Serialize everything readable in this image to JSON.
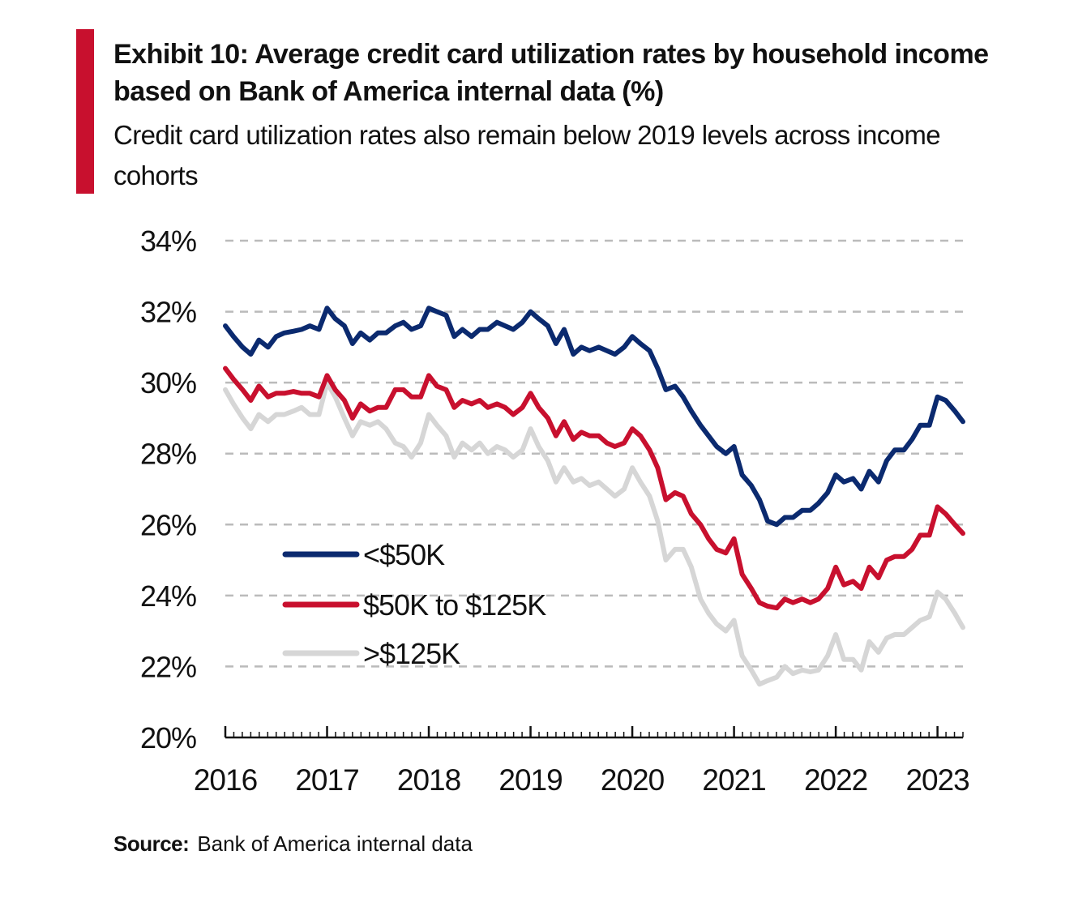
{
  "header": {
    "title": "Exhibit 10: Average credit card utilization rates by household income based on Bank of America internal data (%)",
    "subtitle": "Credit card utilization rates also remain below 2019 levels across income cohorts"
  },
  "source": {
    "label": "Source:",
    "text": "Bank of America internal data"
  },
  "colors": {
    "accent": "#c8102e",
    "low_income": "#0b2a6f",
    "mid_income": "#c8102e",
    "high_income": "#d6d6d6",
    "grid": "#bbbbbb"
  },
  "chart_data": {
    "type": "line",
    "title": "",
    "xlabel": "",
    "ylabel": "",
    "xlim": [
      2016.0,
      2023.25
    ],
    "ylim": [
      20,
      34
    ],
    "y_ticks": [
      "20%",
      "22%",
      "24%",
      "26%",
      "28%",
      "30%",
      "32%",
      "34%"
    ],
    "x_ticks": [
      "2016",
      "2017",
      "2018",
      "2019",
      "2020",
      "2021",
      "2022",
      "2023"
    ],
    "grid": "horizontal dashed",
    "legend_position": "lower-left",
    "series": [
      {
        "name": "<$50K",
        "color": "#0b2a6f",
        "points": [
          [
            2016.0,
            31.6
          ],
          [
            2016.08,
            31.3
          ],
          [
            2016.17,
            31.0
          ],
          [
            2016.25,
            30.8
          ],
          [
            2016.33,
            31.2
          ],
          [
            2016.42,
            31.0
          ],
          [
            2016.5,
            31.3
          ],
          [
            2016.58,
            31.4
          ],
          [
            2016.67,
            31.45
          ],
          [
            2016.75,
            31.5
          ],
          [
            2016.83,
            31.6
          ],
          [
            2016.92,
            31.5
          ],
          [
            2017.0,
            32.1
          ],
          [
            2017.08,
            31.8
          ],
          [
            2017.17,
            31.6
          ],
          [
            2017.25,
            31.1
          ],
          [
            2017.33,
            31.4
          ],
          [
            2017.42,
            31.2
          ],
          [
            2017.5,
            31.4
          ],
          [
            2017.58,
            31.4
          ],
          [
            2017.67,
            31.6
          ],
          [
            2017.75,
            31.7
          ],
          [
            2017.83,
            31.5
          ],
          [
            2017.92,
            31.6
          ],
          [
            2018.0,
            32.1
          ],
          [
            2018.08,
            32.0
          ],
          [
            2018.17,
            31.9
          ],
          [
            2018.25,
            31.3
          ],
          [
            2018.33,
            31.5
          ],
          [
            2018.42,
            31.3
          ],
          [
            2018.5,
            31.5
          ],
          [
            2018.58,
            31.5
          ],
          [
            2018.67,
            31.7
          ],
          [
            2018.75,
            31.6
          ],
          [
            2018.83,
            31.5
          ],
          [
            2018.92,
            31.7
          ],
          [
            2019.0,
            32.0
          ],
          [
            2019.08,
            31.8
          ],
          [
            2019.17,
            31.6
          ],
          [
            2019.25,
            31.1
          ],
          [
            2019.33,
            31.5
          ],
          [
            2019.42,
            30.8
          ],
          [
            2019.5,
            31.0
          ],
          [
            2019.58,
            30.9
          ],
          [
            2019.67,
            31.0
          ],
          [
            2019.75,
            30.9
          ],
          [
            2019.83,
            30.8
          ],
          [
            2019.92,
            31.0
          ],
          [
            2020.0,
            31.3
          ],
          [
            2020.08,
            31.1
          ],
          [
            2020.17,
            30.9
          ],
          [
            2020.25,
            30.4
          ],
          [
            2020.33,
            29.8
          ],
          [
            2020.42,
            29.9
          ],
          [
            2020.5,
            29.6
          ],
          [
            2020.58,
            29.2
          ],
          [
            2020.67,
            28.8
          ],
          [
            2020.75,
            28.5
          ],
          [
            2020.83,
            28.2
          ],
          [
            2020.92,
            28.0
          ],
          [
            2021.0,
            28.2
          ],
          [
            2021.08,
            27.4
          ],
          [
            2021.17,
            27.1
          ],
          [
            2021.25,
            26.7
          ],
          [
            2021.33,
            26.1
          ],
          [
            2021.42,
            26.0
          ],
          [
            2021.5,
            26.2
          ],
          [
            2021.58,
            26.2
          ],
          [
            2021.67,
            26.4
          ],
          [
            2021.75,
            26.4
          ],
          [
            2021.83,
            26.6
          ],
          [
            2021.92,
            26.9
          ],
          [
            2022.0,
            27.4
          ],
          [
            2022.08,
            27.2
          ],
          [
            2022.17,
            27.3
          ],
          [
            2022.25,
            27.0
          ],
          [
            2022.33,
            27.5
          ],
          [
            2022.42,
            27.2
          ],
          [
            2022.5,
            27.8
          ],
          [
            2022.58,
            28.1
          ],
          [
            2022.67,
            28.1
          ],
          [
            2022.75,
            28.4
          ],
          [
            2022.83,
            28.8
          ],
          [
            2022.92,
            28.8
          ],
          [
            2023.0,
            29.6
          ],
          [
            2023.08,
            29.5
          ],
          [
            2023.17,
            29.2
          ],
          [
            2023.25,
            28.9
          ]
        ]
      },
      {
        "name": "$50K to $125K",
        "color": "#c8102e",
        "points": [
          [
            2016.0,
            30.4
          ],
          [
            2016.08,
            30.1
          ],
          [
            2016.17,
            29.8
          ],
          [
            2016.25,
            29.5
          ],
          [
            2016.33,
            29.9
          ],
          [
            2016.42,
            29.6
          ],
          [
            2016.5,
            29.7
          ],
          [
            2016.58,
            29.7
          ],
          [
            2016.67,
            29.75
          ],
          [
            2016.75,
            29.7
          ],
          [
            2016.83,
            29.7
          ],
          [
            2016.92,
            29.6
          ],
          [
            2017.0,
            30.2
          ],
          [
            2017.08,
            29.8
          ],
          [
            2017.17,
            29.5
          ],
          [
            2017.25,
            29.0
          ],
          [
            2017.33,
            29.4
          ],
          [
            2017.42,
            29.2
          ],
          [
            2017.5,
            29.3
          ],
          [
            2017.58,
            29.3
          ],
          [
            2017.67,
            29.8
          ],
          [
            2017.75,
            29.8
          ],
          [
            2017.83,
            29.6
          ],
          [
            2017.92,
            29.6
          ],
          [
            2018.0,
            30.2
          ],
          [
            2018.08,
            29.9
          ],
          [
            2018.17,
            29.8
          ],
          [
            2018.25,
            29.3
          ],
          [
            2018.33,
            29.5
          ],
          [
            2018.42,
            29.4
          ],
          [
            2018.5,
            29.5
          ],
          [
            2018.58,
            29.3
          ],
          [
            2018.67,
            29.4
          ],
          [
            2018.75,
            29.3
          ],
          [
            2018.83,
            29.1
          ],
          [
            2018.92,
            29.3
          ],
          [
            2019.0,
            29.7
          ],
          [
            2019.08,
            29.3
          ],
          [
            2019.17,
            29.0
          ],
          [
            2019.25,
            28.5
          ],
          [
            2019.33,
            28.9
          ],
          [
            2019.42,
            28.4
          ],
          [
            2019.5,
            28.6
          ],
          [
            2019.58,
            28.5
          ],
          [
            2019.67,
            28.5
          ],
          [
            2019.75,
            28.3
          ],
          [
            2019.83,
            28.2
          ],
          [
            2019.92,
            28.3
          ],
          [
            2020.0,
            28.7
          ],
          [
            2020.08,
            28.5
          ],
          [
            2020.17,
            28.1
          ],
          [
            2020.25,
            27.6
          ],
          [
            2020.33,
            26.7
          ],
          [
            2020.42,
            26.9
          ],
          [
            2020.5,
            26.8
          ],
          [
            2020.58,
            26.3
          ],
          [
            2020.67,
            26.0
          ],
          [
            2020.75,
            25.6
          ],
          [
            2020.83,
            25.3
          ],
          [
            2020.92,
            25.2
          ],
          [
            2021.0,
            25.6
          ],
          [
            2021.08,
            24.6
          ],
          [
            2021.17,
            24.2
          ],
          [
            2021.25,
            23.8
          ],
          [
            2021.33,
            23.7
          ],
          [
            2021.42,
            23.65
          ],
          [
            2021.5,
            23.9
          ],
          [
            2021.58,
            23.8
          ],
          [
            2021.67,
            23.9
          ],
          [
            2021.75,
            23.8
          ],
          [
            2021.83,
            23.9
          ],
          [
            2021.92,
            24.2
          ],
          [
            2022.0,
            24.8
          ],
          [
            2022.08,
            24.3
          ],
          [
            2022.17,
            24.4
          ],
          [
            2022.25,
            24.2
          ],
          [
            2022.33,
            24.8
          ],
          [
            2022.42,
            24.5
          ],
          [
            2022.5,
            25.0
          ],
          [
            2022.58,
            25.1
          ],
          [
            2022.67,
            25.1
          ],
          [
            2022.75,
            25.3
          ],
          [
            2022.83,
            25.7
          ],
          [
            2022.92,
            25.7
          ],
          [
            2023.0,
            26.5
          ],
          [
            2023.08,
            26.3
          ],
          [
            2023.17,
            26.0
          ],
          [
            2023.25,
            25.75
          ]
        ]
      },
      {
        "name": ">$125K",
        "color": "#d6d6d6",
        "points": [
          [
            2016.0,
            29.8
          ],
          [
            2016.08,
            29.4
          ],
          [
            2016.17,
            29.0
          ],
          [
            2016.25,
            28.7
          ],
          [
            2016.33,
            29.1
          ],
          [
            2016.42,
            28.9
          ],
          [
            2016.5,
            29.1
          ],
          [
            2016.58,
            29.1
          ],
          [
            2016.67,
            29.2
          ],
          [
            2016.75,
            29.3
          ],
          [
            2016.83,
            29.1
          ],
          [
            2016.92,
            29.1
          ],
          [
            2017.0,
            30.0
          ],
          [
            2017.08,
            29.6
          ],
          [
            2017.17,
            29.0
          ],
          [
            2017.25,
            28.5
          ],
          [
            2017.33,
            28.9
          ],
          [
            2017.42,
            28.8
          ],
          [
            2017.5,
            28.9
          ],
          [
            2017.58,
            28.7
          ],
          [
            2017.67,
            28.3
          ],
          [
            2017.75,
            28.2
          ],
          [
            2017.83,
            27.9
          ],
          [
            2017.92,
            28.3
          ],
          [
            2018.0,
            29.1
          ],
          [
            2018.08,
            28.8
          ],
          [
            2018.17,
            28.5
          ],
          [
            2018.25,
            27.9
          ],
          [
            2018.33,
            28.3
          ],
          [
            2018.42,
            28.1
          ],
          [
            2018.5,
            28.3
          ],
          [
            2018.58,
            28.0
          ],
          [
            2018.67,
            28.2
          ],
          [
            2018.75,
            28.1
          ],
          [
            2018.83,
            27.9
          ],
          [
            2018.92,
            28.1
          ],
          [
            2019.0,
            28.7
          ],
          [
            2019.08,
            28.2
          ],
          [
            2019.17,
            27.8
          ],
          [
            2019.25,
            27.2
          ],
          [
            2019.33,
            27.6
          ],
          [
            2019.42,
            27.2
          ],
          [
            2019.5,
            27.3
          ],
          [
            2019.58,
            27.1
          ],
          [
            2019.67,
            27.2
          ],
          [
            2019.75,
            27.0
          ],
          [
            2019.83,
            26.8
          ],
          [
            2019.92,
            27.0
          ],
          [
            2020.0,
            27.6
          ],
          [
            2020.08,
            27.2
          ],
          [
            2020.17,
            26.8
          ],
          [
            2020.25,
            26.1
          ],
          [
            2020.33,
            25.0
          ],
          [
            2020.42,
            25.3
          ],
          [
            2020.5,
            25.3
          ],
          [
            2020.58,
            24.8
          ],
          [
            2020.67,
            23.9
          ],
          [
            2020.75,
            23.5
          ],
          [
            2020.83,
            23.2
          ],
          [
            2020.92,
            23.0
          ],
          [
            2021.0,
            23.3
          ],
          [
            2021.08,
            22.3
          ],
          [
            2021.17,
            21.9
          ],
          [
            2021.25,
            21.5
          ],
          [
            2021.33,
            21.6
          ],
          [
            2021.42,
            21.7
          ],
          [
            2021.5,
            22.0
          ],
          [
            2021.58,
            21.8
          ],
          [
            2021.67,
            21.9
          ],
          [
            2021.75,
            21.85
          ],
          [
            2021.83,
            21.9
          ],
          [
            2021.92,
            22.3
          ],
          [
            2022.0,
            22.9
          ],
          [
            2022.08,
            22.2
          ],
          [
            2022.17,
            22.2
          ],
          [
            2022.25,
            21.9
          ],
          [
            2022.33,
            22.7
          ],
          [
            2022.42,
            22.4
          ],
          [
            2022.5,
            22.8
          ],
          [
            2022.58,
            22.9
          ],
          [
            2022.67,
            22.9
          ],
          [
            2022.75,
            23.1
          ],
          [
            2022.83,
            23.3
          ],
          [
            2022.92,
            23.4
          ],
          [
            2023.0,
            24.1
          ],
          [
            2023.08,
            23.9
          ],
          [
            2023.17,
            23.5
          ],
          [
            2023.25,
            23.1
          ]
        ]
      }
    ]
  }
}
